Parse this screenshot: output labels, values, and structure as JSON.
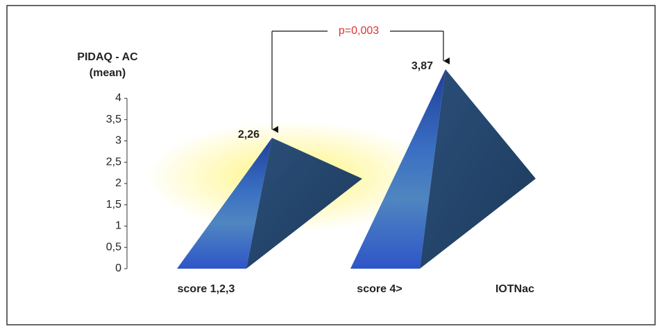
{
  "chart_data": {
    "type": "pyramid",
    "y_label": [
      "PIDAQ - AC",
      "(mean)"
    ],
    "x_label": "IOTNac",
    "categories": [
      "score 1,2,3",
      "score 4>"
    ],
    "values": [
      2.26,
      3.87
    ],
    "value_labels": [
      "2,26",
      "3,87"
    ],
    "annotation": "p=0,003",
    "annotation_color": "#e03030",
    "ylim": [
      0,
      4
    ],
    "yticks": [
      0,
      {
        "value": 0.5,
        "label": "0,5"
      },
      1,
      {
        "value": 1.5,
        "label": "1,5"
      },
      2,
      {
        "value": 2.5,
        "label": "2,5"
      },
      3,
      {
        "value": 3.5,
        "label": "3,5"
      },
      4
    ]
  }
}
